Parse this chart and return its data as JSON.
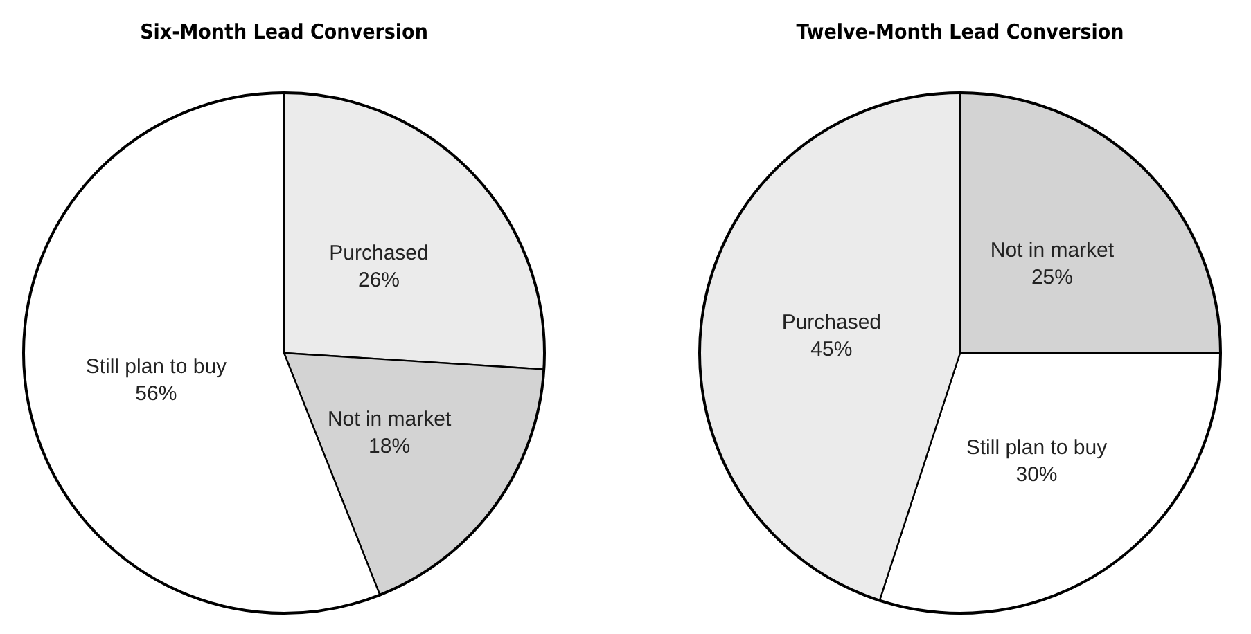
{
  "chart_data": [
    {
      "type": "pie",
      "title": "Six-Month Lead Conversion",
      "categories": [
        "Purchased",
        "Not in market",
        "Still plan to buy"
      ],
      "values": [
        26,
        18,
        56
      ],
      "colors": [
        "#ebebeb",
        "#d3d3d3",
        "#ffffff"
      ],
      "value_labels": [
        "26%",
        "18%",
        "56%"
      ]
    },
    {
      "type": "pie",
      "title": "Twelve-Month Lead Conversion",
      "categories": [
        "Not in market",
        "Still plan to buy",
        "Purchased"
      ],
      "values": [
        25,
        30,
        45
      ],
      "colors": [
        "#d3d3d3",
        "#ffffff",
        "#ebebeb"
      ],
      "value_labels": [
        "25%",
        "30%",
        "45%"
      ]
    }
  ]
}
